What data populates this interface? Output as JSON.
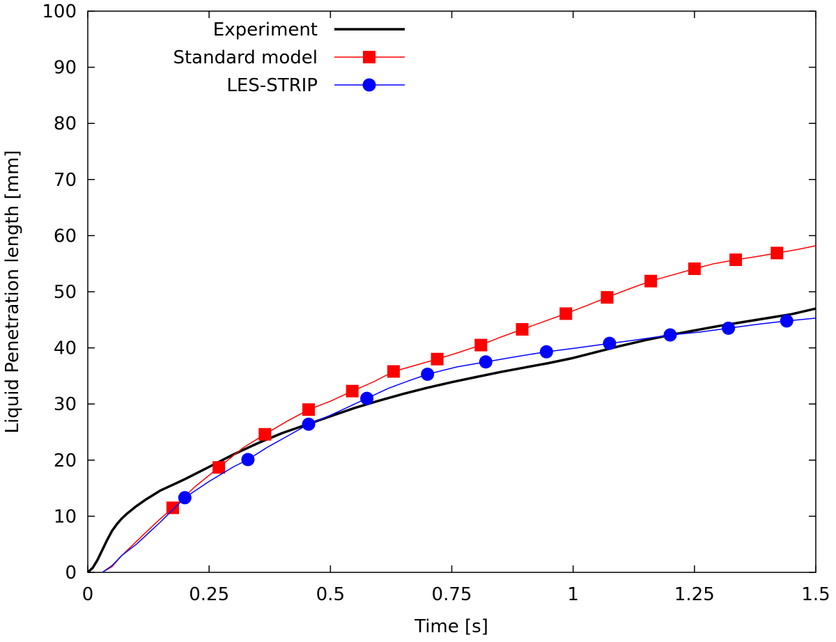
{
  "chart_data": {
    "type": "line",
    "title": "",
    "xlabel": "Time [s]",
    "ylabel": "Liquid Penetration length [mm]",
    "xlim": [
      0,
      1.5
    ],
    "ylim": [
      0,
      100
    ],
    "xticks": [
      0,
      0.25,
      0.5,
      0.75,
      1,
      1.25,
      1.5
    ],
    "xtick_labels": [
      "0",
      "0.25",
      "0.5",
      "0.75",
      "1",
      "1.25",
      "1.5"
    ],
    "yticks": [
      0,
      10,
      20,
      30,
      40,
      50,
      60,
      70,
      80,
      90,
      100
    ],
    "ytick_labels": [
      "0",
      "10",
      "20",
      "30",
      "40",
      "50",
      "60",
      "70",
      "80",
      "90",
      "100"
    ],
    "grid": false,
    "legend_position": "top-left",
    "series": [
      {
        "name": "Experiment",
        "color": "#000000",
        "marker": "none",
        "line_width": 3.5,
        "x": [
          0,
          0.01,
          0.02,
          0.03,
          0.04,
          0.05,
          0.06,
          0.07,
          0.08,
          0.1,
          0.12,
          0.15,
          0.18,
          0.2,
          0.25,
          0.3,
          0.35,
          0.4,
          0.45,
          0.5,
          0.55,
          0.6,
          0.65,
          0.7,
          0.75,
          0.8,
          0.85,
          0.9,
          0.95,
          1.0,
          1.05,
          1.1,
          1.15,
          1.2,
          1.25,
          1.3,
          1.35,
          1.4,
          1.45,
          1.5
        ],
        "y": [
          0,
          0.8,
          2.2,
          4.0,
          5.8,
          7.4,
          8.6,
          9.6,
          10.4,
          11.8,
          13.0,
          14.6,
          15.8,
          16.6,
          18.8,
          21.0,
          23.0,
          24.8,
          26.3,
          27.8,
          29.3,
          30.6,
          31.8,
          32.9,
          33.9,
          34.8,
          35.7,
          36.5,
          37.3,
          38.2,
          39.3,
          40.4,
          41.4,
          42.3,
          43.1,
          43.9,
          44.6,
          45.3,
          46.0,
          47.0
        ]
      },
      {
        "name": "Standard model",
        "color": "#ff0000",
        "marker": "square",
        "line_width": 1.5,
        "x": [
          0.03,
          0.05,
          0.07,
          0.1,
          0.14,
          0.175,
          0.22,
          0.27,
          0.32,
          0.365,
          0.41,
          0.455,
          0.5,
          0.545,
          0.59,
          0.63,
          0.675,
          0.72,
          0.765,
          0.81,
          0.85,
          0.895,
          0.94,
          0.985,
          1.03,
          1.07,
          1.115,
          1.16,
          1.205,
          1.25,
          1.29,
          1.335,
          1.38,
          1.42,
          1.46,
          1.5
        ],
        "y": [
          0,
          1.0,
          3.0,
          5.5,
          8.8,
          11.5,
          15.2,
          18.7,
          22.2,
          24.6,
          26.9,
          29.0,
          30.5,
          32.3,
          34.0,
          35.8,
          36.9,
          38.0,
          39.2,
          40.5,
          41.9,
          43.3,
          44.7,
          46.1,
          47.6,
          49.0,
          50.5,
          51.9,
          53.0,
          54.1,
          55.0,
          55.7,
          56.3,
          56.9,
          57.5,
          58.2
        ],
        "marker_x": [
          0.175,
          0.27,
          0.365,
          0.455,
          0.545,
          0.63,
          0.72,
          0.81,
          0.895,
          0.985,
          1.07,
          1.16,
          1.25,
          1.335,
          1.42
        ],
        "marker_y": [
          11.5,
          18.7,
          24.6,
          29.0,
          32.3,
          35.8,
          38.0,
          40.5,
          43.3,
          46.1,
          49.0,
          51.9,
          54.1,
          55.7,
          56.9
        ]
      },
      {
        "name": "LES-STRIP",
        "color": "#0000ff",
        "marker": "circle",
        "line_width": 1.5,
        "x": [
          0.03,
          0.05,
          0.07,
          0.1,
          0.15,
          0.2,
          0.25,
          0.3,
          0.33,
          0.37,
          0.41,
          0.455,
          0.5,
          0.54,
          0.575,
          0.62,
          0.66,
          0.7,
          0.76,
          0.82,
          0.88,
          0.945,
          1.0,
          1.05,
          1.075,
          1.12,
          1.16,
          1.2,
          1.26,
          1.32,
          1.38,
          1.44,
          1.5
        ],
        "y": [
          0,
          1.2,
          3.0,
          5.0,
          9.0,
          13.3,
          16.2,
          18.8,
          20.1,
          22.3,
          24.2,
          26.4,
          28.0,
          29.6,
          31.0,
          32.8,
          34.1,
          35.3,
          36.6,
          37.5,
          38.4,
          39.3,
          39.9,
          40.5,
          40.8,
          41.3,
          41.8,
          42.3,
          42.8,
          43.5,
          44.2,
          44.8,
          45.3
        ],
        "marker_x": [
          0.2,
          0.33,
          0.455,
          0.575,
          0.7,
          0.82,
          0.945,
          1.075,
          1.2,
          1.32,
          1.44
        ],
        "marker_y": [
          13.3,
          20.1,
          26.4,
          31.0,
          35.3,
          37.5,
          39.3,
          40.8,
          42.3,
          43.5,
          44.8
        ]
      }
    ]
  }
}
